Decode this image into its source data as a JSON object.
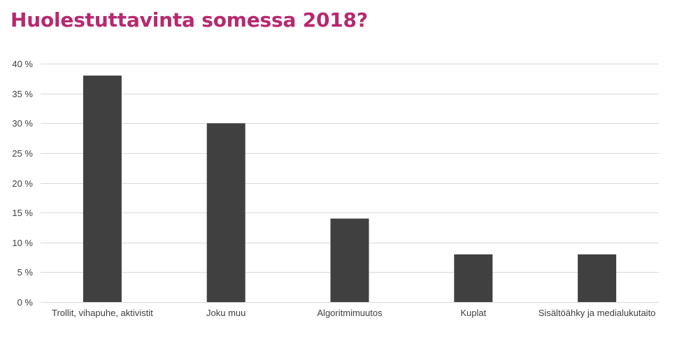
{
  "chart_data": {
    "type": "bar",
    "title": "Huolestuttavinta somessa 2018?",
    "categories": [
      "Trollit, vihapuhe, aktivistit",
      "Joku muu",
      "Algoritmimuutos",
      "Kuplat",
      "Sisältöähky ja medialukutaito"
    ],
    "values": [
      38,
      30,
      14,
      8,
      8
    ],
    "ylim": [
      0,
      40
    ],
    "yticks": [
      0,
      5,
      10,
      15,
      20,
      25,
      30,
      35,
      40
    ],
    "ytick_labels": [
      "0 %",
      "5 %",
      "10 %",
      "15 %",
      "20 %",
      "25 %",
      "30 %",
      "35 %",
      "40 %"
    ],
    "xlabel": "",
    "ylabel": "",
    "grid": true,
    "legend": "none",
    "colors": {
      "bar": "#404040",
      "title": "#b8286f",
      "grid": "#d9d9d9",
      "text": "#404040"
    }
  }
}
